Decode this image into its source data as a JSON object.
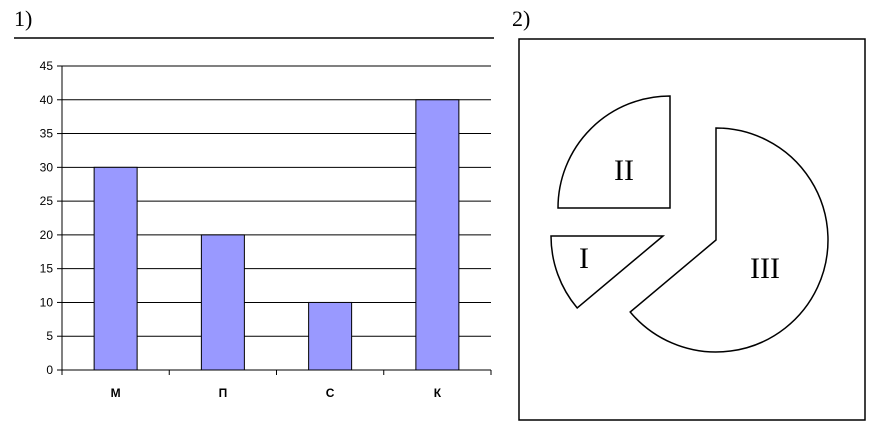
{
  "panels": {
    "bar_label": "1)",
    "pie_label": "2)"
  },
  "chart_data": [
    {
      "type": "bar",
      "categories": [
        "М",
        "П",
        "С",
        "К"
      ],
      "values": [
        30,
        20,
        10,
        40
      ],
      "ylim": [
        0,
        45
      ],
      "yticks": [
        0,
        5,
        10,
        15,
        20,
        25,
        30,
        35,
        40,
        45
      ],
      "bar_color": "#9999ff",
      "grid": true
    },
    {
      "type": "pie",
      "categories": [
        "I",
        "II",
        "III"
      ],
      "exploded": true
    }
  ]
}
